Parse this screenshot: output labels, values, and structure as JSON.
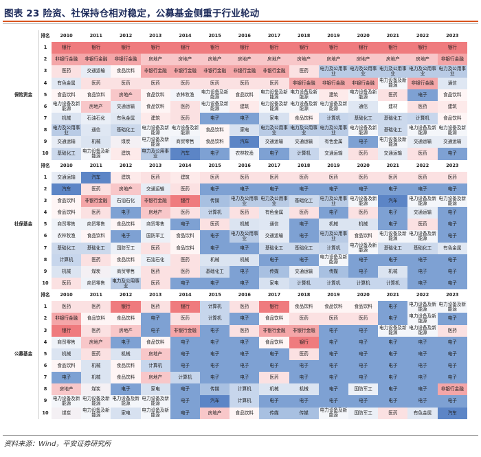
{
  "title": "图表 23   险资、社保持仓相对稳定，公募基金侧重于行业轮动",
  "source": "资料来源：Wind，平安证券研究所",
  "header": {
    "rank_label": "排名",
    "years": [
      "2010",
      "2011",
      "2012",
      "2013",
      "2014",
      "2015",
      "2016",
      "2017",
      "2018",
      "2019",
      "2020",
      "2021",
      "2022",
      "2023"
    ]
  },
  "industry_colors": {
    "银行": "#ef7b7e",
    "非银行金融": "#f4a6a8",
    "房地产": "#f8c7c9",
    "医药": "#fbe1e2",
    "食品饮料": "#fef5f5",
    "交通运输": "#e7ecf5",
    "建筑": "#fdeaea",
    "家电": "#d7e1f0",
    "电力及公用事业": "#b9cbe5",
    "基础化工": "#ccd9ec",
    "电子": "#7ea1d3",
    "计算机": "#c7d6ec",
    "传媒": "#a8c0e1",
    "汽车": "#5c85c6",
    "机械": "#dbe4f1",
    "有色金属": "#e1e8f3",
    "煤炭": "#f4f0f4",
    "国防军工": "#ecf0f7",
    "通信": "#dfe7f3",
    "商贸零售": "#eef2f8",
    "农林牧渔": "#f3f5fa",
    "石油石化": "#eaeff7",
    "轻工制造": "#f6f8fb",
    "电力设备及新能源": "#f4f6fa"
  },
  "groups": [
    {
      "name": "保险资金",
      "rows": [
        [
          "银行",
          "银行",
          "银行",
          "银行",
          "银行",
          "银行",
          "银行",
          "银行",
          "银行",
          "银行",
          "银行",
          "银行",
          "银行",
          "银行"
        ],
        [
          "非银行金融",
          "非银行金融",
          "非银行金融",
          "房地产",
          "房地产",
          "房地产",
          "房地产",
          "房地产",
          "房地产",
          "房地产",
          "房地产",
          "房地产",
          "房地产",
          "非银行金融"
        ],
        [
          "医药",
          "交通运输",
          "食品饮料",
          "非银行金融",
          "非银行金融",
          "非银行金融",
          "非银行金融",
          "非银行金融",
          "医药",
          "电力及公用事业",
          "电力及公用事业",
          "电力及公用事业",
          "电力及公用事业",
          "电力及公用事业"
        ],
        [
          "有色金属",
          "医药",
          "医药",
          "医药",
          "医药",
          "医药",
          "医药",
          "医药",
          "非银行金融",
          "非银行金融",
          "非银行金融",
          "电力设备及新能源",
          "非银行金融",
          "通信"
        ],
        [
          "食品饮料",
          "食品饮料",
          "房地产",
          "食品饮料",
          "农林牧渔",
          "电力设备及新能源",
          "食品饮料",
          "电力设备及新能源",
          "电力设备及新能源",
          "建筑",
          "电力设备及新能源",
          "医药",
          "电子",
          "食品饮料"
        ],
        [
          "电力设备及新能源",
          "房地产",
          "交通运输",
          "食品饮料",
          "医药",
          "电力设备及新能源",
          "建筑",
          "电力设备及新能源",
          "电力设备及新能源",
          "电力设备及新能源",
          "通信",
          "建材",
          "医药",
          "建筑"
        ],
        [
          "机械",
          "石油石化",
          "有色金属",
          "建筑",
          "医药",
          "电子",
          "电子",
          "家电",
          "食品饮料",
          "计算机",
          "基础化工",
          "基础化工",
          "计算机",
          "食品饮料"
        ],
        [
          "电力及公用事业",
          "通信",
          "基础化工",
          "电力设备及新能源",
          "电力设备及新能源",
          "食品饮料",
          "家电",
          "电力及公用事业",
          "电力及公用事业",
          "电力及公用事业",
          "电力设备及新能源",
          "基础化工",
          "电力设备及新能源",
          "电力设备及新能源"
        ],
        [
          "交通运输",
          "机械",
          "煤炭",
          "电力设备及新能源",
          "商贸零售",
          "食品饮料",
          "汽车",
          "交通运输",
          "交通运输",
          "有色金属",
          "电子",
          "电力设备及新能源",
          "交通运输",
          "交通运输"
        ],
        [
          "基础化工",
          "电力设备及新能源",
          "建筑",
          "电力及公用事业",
          "汽车",
          "电子",
          "农林牧渔",
          "电子",
          "计算机",
          "交通运输",
          "医药",
          "交通运输",
          "医药",
          "电子"
        ]
      ]
    },
    {
      "name": "社保基金",
      "rows": [
        [
          "交通运输",
          "汽车",
          "建筑",
          "医药",
          "建筑",
          "医药",
          "医药",
          "医药",
          "医药",
          "医药",
          "医药",
          "医药",
          "医药",
          "医药"
        ],
        [
          "汽车",
          "医药",
          "房地产",
          "交通运输",
          "医药",
          "电子",
          "电子",
          "电子",
          "电子",
          "电子",
          "电子",
          "电子",
          "电子",
          "电子"
        ],
        [
          "食品饮料",
          "非银行金融",
          "石油石化",
          "非银行金融",
          "银行",
          "传媒",
          "电力及公用事业",
          "电力及公用事业",
          "基础化工",
          "电力及公用事业",
          "电力设备及新能源",
          "汽车",
          "电力设备及新能源",
          "电力设备及新能源"
        ],
        [
          "食品饮料",
          "医药",
          "电子",
          "房地产",
          "医药",
          "计算机",
          "医药",
          "有色金属",
          "医药",
          "电子",
          "医药",
          "电子",
          "交通运输",
          "电子"
        ],
        [
          "商贸零售",
          "商贸零售",
          "食品饮料",
          "商贸零售",
          "电子",
          "医药",
          "机械",
          "通信",
          "电子",
          "机械",
          "机械",
          "电子",
          "医药",
          "电子"
        ],
        [
          "农林牧渔",
          "食品饮料",
          "电子",
          "国防军工",
          "食品饮料",
          "电子",
          "电力及公用事业",
          "交通运输",
          "电子",
          "电力及公用事业",
          "食品饮料",
          "电力设备及新能源",
          "电力设备及新能源",
          "电子"
        ],
        [
          "基础化工",
          "基础化工",
          "国防军工",
          "医药",
          "食品饮料",
          "电子",
          "电子",
          "基础化工",
          "基础化工",
          "计算机",
          "电力设备及新能源",
          "基础化工",
          "基础化工",
          "有色金属"
        ],
        [
          "计算机",
          "医药",
          "食品饮料",
          "石油石化",
          "医药",
          "机械",
          "机械",
          "电子",
          "电子",
          "电力设备及新能源",
          "电子",
          "电子",
          "电子",
          "电子"
        ],
        [
          "机械",
          "煤炭",
          "商贸零售",
          "医药",
          "医药",
          "基础化工",
          "电子",
          "传媒",
          "交通运输",
          "传媒",
          "电子",
          "机械",
          "电子",
          "电子"
        ],
        [
          "医药",
          "商贸零售",
          "电力及公用事业",
          "医药",
          "电子",
          "电子",
          "电子",
          "家电",
          "计算机",
          "计算机",
          "计算机",
          "计算机",
          "电子",
          "电子"
        ]
      ]
    },
    {
      "name": "公募基金",
      "rows": [
        [
          "医药",
          "医药",
          "银行",
          "医药",
          "银行",
          "计算机",
          "医药",
          "银行",
          "食品饮料",
          "食品饮料",
          "食品饮料",
          "电子",
          "电力设备及新能源",
          "电力设备及新能源"
        ],
        [
          "非银行金融",
          "食品饮料",
          "食品饮料",
          "电子",
          "医药",
          "计算机",
          "电子",
          "食品饮料",
          "医药",
          "医药",
          "医药",
          "电子",
          "电力设备及新能源",
          "电子"
        ],
        [
          "银行",
          "医药",
          "房地产",
          "电子",
          "非银行金融",
          "电子",
          "医药",
          "非银行金融",
          "非银行金融",
          "电子",
          "电子",
          "电力设备及新能源",
          "电力设备及新能源",
          "医药"
        ],
        [
          "商贸零售",
          "房地产",
          "电子",
          "食品饮料",
          "电子",
          "电子",
          "电子",
          "食品饮料",
          "银行",
          "电子",
          "电子",
          "电子",
          "电子",
          "电子"
        ],
        [
          "机械",
          "医药",
          "机械",
          "房地产",
          "电子",
          "电子",
          "电子",
          "电子",
          "医药",
          "电子",
          "电子",
          "电子",
          "电子",
          "电子"
        ],
        [
          "食品饮料",
          "机械",
          "食品饮料",
          "计算机",
          "电子",
          "电子",
          "电子",
          "电子",
          "电子",
          "电子",
          "电子",
          "电子",
          "电子",
          "电子"
        ],
        [
          "电子",
          "机械",
          "食品饮料",
          "房地产",
          "计算机",
          "电子",
          "电子",
          "医药",
          "电子",
          "电子",
          "电子",
          "电子",
          "电子",
          "电子"
        ],
        [
          "房地产",
          "煤炭",
          "电子",
          "家电",
          "电子",
          "传媒",
          "计算机",
          "机械",
          "机械",
          "电子",
          "国防军工",
          "电子",
          "电子",
          "非银行金融"
        ],
        [
          "电力设备及新能源",
          "电力设备及新能源",
          "电力设备及新能源",
          "电力设备及新能源",
          "电子",
          "汽车",
          "计算机",
          "电子",
          "电子",
          "电子",
          "电子",
          "电子",
          "电子",
          "电子"
        ],
        [
          "煤炭",
          "电力设备及新能源",
          "家电",
          "电力设备及新能源",
          "电子",
          "房地产",
          "食品饮料",
          "传媒",
          "传媒",
          "电力设备及新能源",
          "国防军工",
          "医药",
          "有色金属",
          "汽车"
        ]
      ]
    }
  ]
}
